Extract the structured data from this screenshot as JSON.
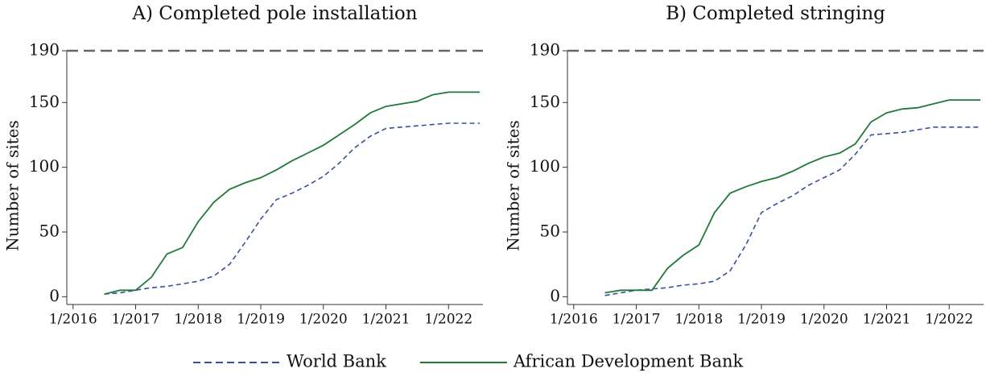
{
  "chart_data": [
    {
      "type": "line",
      "title": "A) Completed pole installation",
      "ylabel": "Number of sites",
      "x": [
        2016.5,
        2016.75,
        2017,
        2017.25,
        2017.5,
        2017.75,
        2018,
        2018.25,
        2018.5,
        2018.75,
        2019,
        2019.25,
        2019.5,
        2019.75,
        2020,
        2020.25,
        2020.5,
        2020.75,
        2021,
        2021.25,
        2021.5,
        2021.75,
        2022,
        2022.5
      ],
      "series": [
        {
          "name": "World Bank",
          "color": "#3a4fa0",
          "dash": true,
          "values": [
            2,
            3,
            5,
            7,
            8,
            10,
            12,
            16,
            25,
            42,
            60,
            75,
            80,
            86,
            93,
            103,
            115,
            124,
            130,
            131,
            132,
            133,
            134,
            134
          ]
        },
        {
          "name": "African Development Bank",
          "color": "#1f7a3a",
          "dash": false,
          "values": [
            2,
            5,
            5,
            15,
            33,
            38,
            58,
            73,
            83,
            88,
            92,
            98,
            105,
            111,
            117,
            125,
            133,
            142,
            147,
            149,
            151,
            156,
            158,
            158
          ]
        }
      ],
      "hline": 190,
      "xlim": [
        2015.9,
        2022.55
      ],
      "ylim": [
        -6,
        190
      ],
      "xticks": [
        {
          "value": 2016,
          "label": "1/2016"
        },
        {
          "value": 2017,
          "label": "1/2017"
        },
        {
          "value": 2018,
          "label": "1/2018"
        },
        {
          "value": 2019,
          "label": "1/2019"
        },
        {
          "value": 2020,
          "label": "1/2020"
        },
        {
          "value": 2021,
          "label": "1/2021"
        },
        {
          "value": 2022,
          "label": "1/2022"
        }
      ],
      "yticks": [
        0,
        50,
        100,
        150,
        190
      ]
    },
    {
      "type": "line",
      "title": "B) Completed stringing",
      "ylabel": "Number of sites",
      "x": [
        2016.5,
        2016.75,
        2017,
        2017.25,
        2017.5,
        2017.75,
        2018,
        2018.25,
        2018.5,
        2018.75,
        2019,
        2019.25,
        2019.5,
        2019.75,
        2020,
        2020.25,
        2020.5,
        2020.75,
        2021,
        2021.25,
        2021.5,
        2021.75,
        2022,
        2022.5
      ],
      "series": [
        {
          "color": "#3a4fa0",
          "dash": true,
          "values": [
            1,
            3,
            5,
            6,
            7,
            9,
            10,
            12,
            20,
            40,
            65,
            72,
            78,
            86,
            92,
            98,
            110,
            125,
            126,
            127,
            129,
            131,
            131,
            131
          ]
        },
        {
          "color": "#1f7a3a",
          "dash": false,
          "values": [
            3,
            5,
            5,
            5,
            22,
            32,
            40,
            65,
            80,
            85,
            89,
            92,
            97,
            103,
            108,
            111,
            118,
            135,
            142,
            145,
            146,
            149,
            152,
            152
          ]
        }
      ],
      "hline": 190,
      "xlim": [
        2015.9,
        2022.55
      ],
      "ylim": [
        -6,
        190
      ],
      "xticks": [
        {
          "value": 2016,
          "label": "1/2016"
        },
        {
          "value": 2017,
          "label": "1/2017"
        },
        {
          "value": 2018,
          "label": "1/2018"
        },
        {
          "value": 2019,
          "label": "1/2019"
        },
        {
          "value": 2020,
          "label": "1/2020"
        },
        {
          "value": 2021,
          "label": "1/2021"
        },
        {
          "value": 2022,
          "label": "1/2022"
        }
      ],
      "yticks": [
        0,
        50,
        100,
        150,
        190
      ]
    }
  ]
}
